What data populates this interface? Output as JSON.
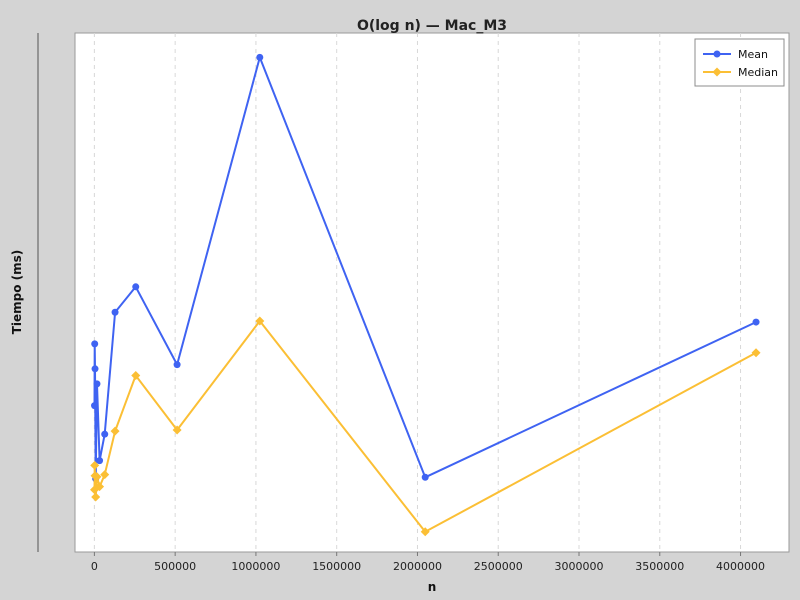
{
  "chart_data": {
    "type": "line",
    "title": "O(log n) — Mac_M3",
    "xlabel": "n",
    "ylabel": "Tiempo (ms)",
    "xlim": [
      -120000,
      4300000
    ],
    "ylim": [
      0,
      100
    ],
    "grid": {
      "x": true,
      "y": false
    },
    "legend_position": "top-right",
    "x_ticks": [
      0,
      500000,
      1000000,
      1500000,
      2000000,
      2500000,
      3000000,
      3500000,
      4000000
    ],
    "x_tick_labels": [
      "0",
      "500000",
      "1000000",
      "1500000",
      "2000000",
      "2500000",
      "3000000",
      "3500000",
      "4000000"
    ],
    "series": [
      {
        "name": "Mean",
        "color": "#3f63f2",
        "marker": "circle",
        "x": [
          1000,
          2000,
          4000,
          8000,
          16000,
          32000,
          64000,
          128000,
          256000,
          512000,
          1024000,
          2048000,
          4096000
        ],
        "y": [
          28.2,
          40.1,
          35.3,
          14.1,
          32.4,
          17.6,
          22.7,
          46.2,
          51.1,
          36.1,
          95.3,
          14.4,
          44.3
        ]
      },
      {
        "name": "Median",
        "color": "#fbbf35",
        "marker": "diamond",
        "x": [
          1000,
          2000,
          4000,
          8000,
          16000,
          32000,
          64000,
          128000,
          256000,
          512000,
          1024000,
          2048000,
          4096000
        ],
        "y": [
          12.0,
          16.7,
          14.7,
          10.6,
          14.5,
          12.6,
          14.9,
          23.3,
          34.0,
          23.5,
          44.5,
          3.9,
          38.4
        ]
      }
    ]
  }
}
